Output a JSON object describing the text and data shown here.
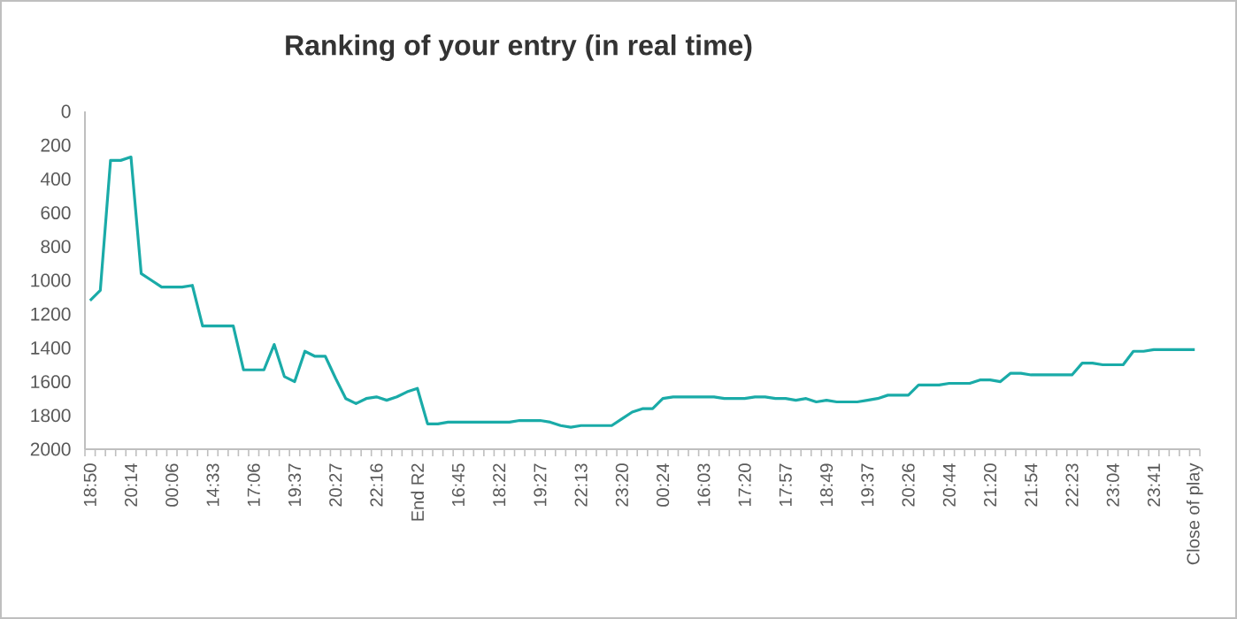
{
  "chart_data": {
    "type": "line",
    "title": "Ranking of your entry (in real time)",
    "categories": [
      "18:50",
      null,
      null,
      null,
      "20:14",
      null,
      null,
      null,
      "00:06",
      null,
      null,
      null,
      "14:33",
      null,
      null,
      null,
      "17:06",
      null,
      null,
      null,
      "19:37",
      null,
      null,
      null,
      "20:27",
      null,
      null,
      null,
      "22:16",
      null,
      null,
      null,
      "End R2",
      null,
      null,
      null,
      "16:45",
      null,
      null,
      null,
      "18:22",
      null,
      null,
      null,
      "19:27",
      null,
      null,
      null,
      "22:13",
      null,
      null,
      null,
      "23:20",
      null,
      null,
      null,
      "00:24",
      null,
      null,
      null,
      "16:03",
      null,
      null,
      null,
      "17:20",
      null,
      null,
      null,
      "17:57",
      null,
      null,
      null,
      "18:49",
      null,
      null,
      null,
      "19:37",
      null,
      null,
      null,
      "20:26",
      null,
      null,
      null,
      "20:44",
      null,
      null,
      null,
      "21:20",
      null,
      null,
      null,
      "21:54",
      null,
      null,
      null,
      "22:23",
      null,
      null,
      null,
      "23:04",
      null,
      null,
      null,
      "23:41",
      null,
      null,
      null,
      "Close of play"
    ],
    "values": [
      1120,
      1060,
      290,
      290,
      270,
      960,
      1000,
      1040,
      1040,
      1040,
      1030,
      1270,
      1270,
      1270,
      1270,
      1530,
      1530,
      1530,
      1380,
      1570,
      1600,
      1420,
      1450,
      1450,
      1580,
      1700,
      1730,
      1700,
      1690,
      1710,
      1690,
      1660,
      1640,
      1850,
      1850,
      1840,
      1840,
      1840,
      1840,
      1840,
      1840,
      1840,
      1830,
      1830,
      1830,
      1840,
      1860,
      1870,
      1860,
      1860,
      1860,
      1860,
      1820,
      1780,
      1760,
      1760,
      1700,
      1690,
      1690,
      1690,
      1690,
      1690,
      1700,
      1700,
      1700,
      1690,
      1690,
      1700,
      1700,
      1710,
      1700,
      1720,
      1710,
      1720,
      1720,
      1720,
      1710,
      1700,
      1680,
      1680,
      1680,
      1620,
      1620,
      1620,
      1610,
      1610,
      1610,
      1590,
      1590,
      1600,
      1550,
      1550,
      1560,
      1560,
      1560,
      1560,
      1560,
      1490,
      1490,
      1500,
      1500,
      1500,
      1420,
      1420,
      1410,
      1410,
      1410,
      1410,
      1410
    ],
    "color": "#1aaba8",
    "marker": "none",
    "ylim": [
      2000,
      0
    ],
    "yticks": [
      0,
      200,
      400,
      600,
      800,
      1000,
      1200,
      1400,
      1600,
      1800,
      2000
    ]
  }
}
